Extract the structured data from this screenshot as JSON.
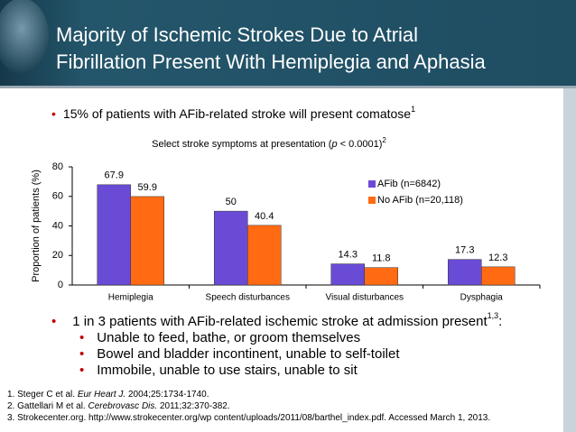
{
  "header": {
    "title_lines": [
      "Majority of Ischemic Strokes Due to Atrial",
      "Fibrillation Present With Hemiplegia and Aphasia"
    ]
  },
  "intro": {
    "text": "15% of patients with AFib-related stroke will present comatose",
    "ref": "1"
  },
  "chart_data": {
    "type": "bar",
    "title_parts": [
      "Select stroke symptoms at presentation (",
      "p",
      " < 0.0001)",
      "2"
    ],
    "y_label": "Proportion of patients (%)",
    "categories": [
      "Hemiplegia",
      "Speech disturbances",
      "Visual disturbances",
      "Dysphagia"
    ],
    "series": [
      {
        "name": "AFib (n=6842)",
        "color": "#6a4bd6",
        "values": [
          67.9,
          50,
          14.3,
          17.3
        ]
      },
      {
        "name": "No AFib (n=20,118)",
        "color": "#ff6a13",
        "values": [
          59.9,
          40.4,
          11.8,
          12.3
        ]
      }
    ],
    "ylim": [
      0,
      80
    ],
    "yticks": [
      0,
      20,
      40,
      60,
      80
    ],
    "grid": false,
    "legend": "right"
  },
  "findings": {
    "text": "1 in 3 patients with AFib-related ischemic stroke at admission present",
    "ref": "1,3",
    "end": ":",
    "items": [
      "Unable to feed, bathe, or groom themselves",
      "Bowel and bladder incontinent, unable to self-toilet",
      "Immobile, unable to use stairs, unable to sit"
    ]
  },
  "references": [
    [
      "1. Steger C et al. ",
      "Eur Heart J.",
      " 2004;25:1734-1740."
    ],
    [
      "2. Gattellari M et al. ",
      "Cerebrovasc Dis.",
      " 2011;32:370-382."
    ],
    [
      "3. Strokecenter.org. http://www.strokecenter.org/wp content/uploads/2011/08/barthel_index.pdf. Accessed March 1, 2013."
    ]
  ]
}
